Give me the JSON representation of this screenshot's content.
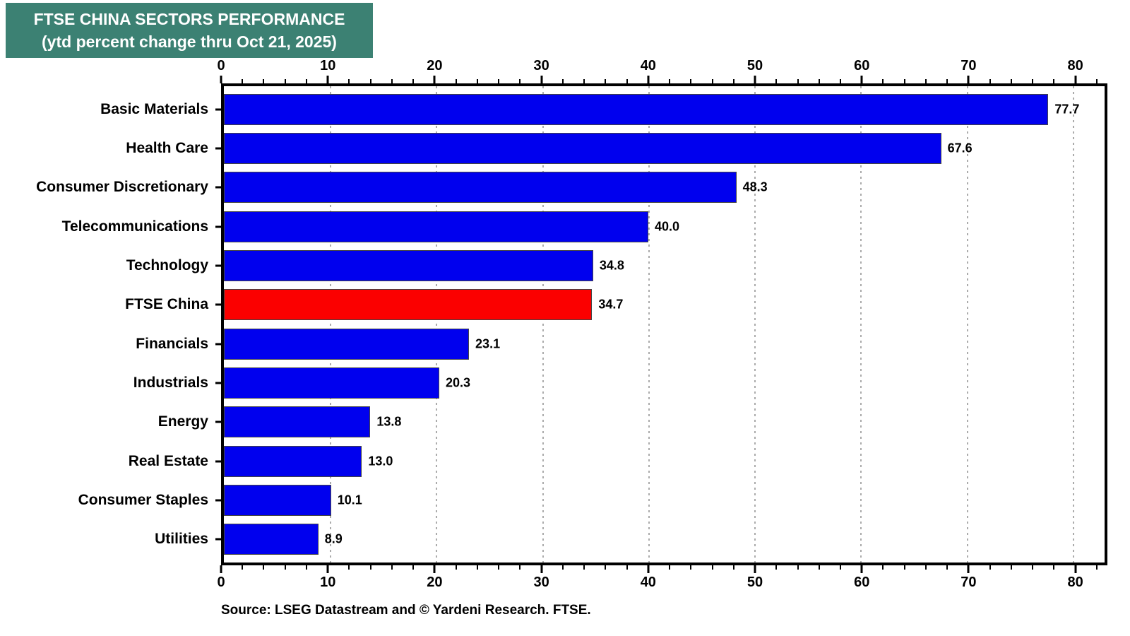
{
  "title": {
    "line1": "FTSE CHINA SECTORS PERFORMANCE",
    "line2": "(ytd percent change thru Oct 21, 2025)"
  },
  "source": "Source: LSEG Datastream and © Yardeni Research. FTSE.",
  "colors": {
    "title_bg": "#3C8173",
    "bar_blue": "#0000EE",
    "bar_highlight_red": "#FB0000",
    "grid": "#ababab",
    "axis": "#000000",
    "title_text": "#ffffff"
  },
  "chart_data": {
    "type": "bar",
    "orientation": "horizontal",
    "title": "FTSE CHINA SECTORS PERFORMANCE (ytd percent change thru Oct 21, 2025)",
    "categories": [
      "Basic Materials",
      "Health Care",
      "Consumer Discretionary",
      "Telecommunications",
      "Technology",
      "FTSE China",
      "Financials",
      "Industrials",
      "Energy",
      "Real Estate",
      "Consumer Staples",
      "Utilities"
    ],
    "values": [
      77.7,
      67.6,
      48.3,
      40.0,
      34.8,
      34.7,
      23.1,
      20.3,
      13.8,
      13.0,
      10.1,
      8.9
    ],
    "value_labels": [
      "77.7",
      "67.6",
      "48.3",
      "40.0",
      "34.8",
      "34.7",
      "23.1",
      "20.3",
      "13.8",
      "13.0",
      "10.1",
      "8.9"
    ],
    "highlight_category": "FTSE China",
    "xlim": [
      0,
      83
    ],
    "x_major_ticks": [
      0,
      10,
      20,
      30,
      40,
      50,
      60,
      70,
      80
    ],
    "x_minor_tick_step": 2,
    "grid": "dotted vertical gridlines at major ticks, top and bottom mirrored axes",
    "legend": "none"
  }
}
